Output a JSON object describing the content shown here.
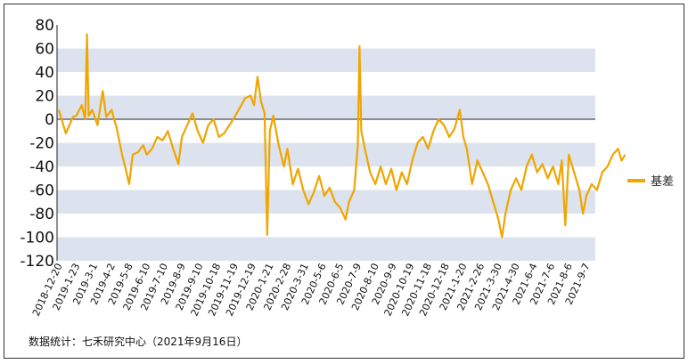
{
  "chart_data": {
    "type": "line",
    "title": "",
    "xlabel": "",
    "ylabel": "",
    "ylim": [
      -120,
      80
    ],
    "y_ticks": [
      80,
      60,
      40,
      20,
      0,
      -20,
      -40,
      -60,
      -80,
      -100,
      -120
    ],
    "grid": "alternating horizontal bands",
    "legend_position": "right",
    "categories": [
      "2018-12-20",
      "2019-1-23",
      "2019-3-1",
      "2019-4-2",
      "2019-5-8",
      "2019-6-10",
      "2019-7-10",
      "2019-8-9",
      "2019-9-10",
      "2019-10-18",
      "2019-11-19",
      "2019-12-19",
      "2020-1-21",
      "2020-2-28",
      "2020-3-31",
      "2020-5-6",
      "2020-6-5",
      "2020-7-9",
      "2020-8-10",
      "2020-9-9",
      "2020-10-19",
      "2020-11-18",
      "2020-12-18",
      "2021-1-20",
      "2021-2-26",
      "2021-3-30",
      "2021-4-30",
      "2021-6-4",
      "2021-7-6",
      "2021-8-6",
      "2021-9-7"
    ],
    "series": [
      {
        "name": "基差",
        "color": "#F0A500",
        "values": [
          [
            0,
            8
          ],
          [
            0.4,
            -12
          ],
          [
            0.8,
            2
          ],
          [
            1,
            3
          ],
          [
            1.3,
            12
          ],
          [
            1.5,
            0
          ],
          [
            1.6,
            72
          ],
          [
            1.7,
            3
          ],
          [
            1.9,
            8
          ],
          [
            2.2,
            -5
          ],
          [
            2.5,
            24
          ],
          [
            2.7,
            2
          ],
          [
            3,
            8
          ],
          [
            3.3,
            -8
          ],
          [
            3.6,
            -30
          ],
          [
            3.8,
            -42
          ],
          [
            4,
            -55
          ],
          [
            4.2,
            -30
          ],
          [
            4.5,
            -28
          ],
          [
            4.8,
            -22
          ],
          [
            5,
            -30
          ],
          [
            5.3,
            -25
          ],
          [
            5.6,
            -15
          ],
          [
            5.9,
            -18
          ],
          [
            6.2,
            -10
          ],
          [
            6.5,
            -25
          ],
          [
            6.8,
            -38
          ],
          [
            7,
            -15
          ],
          [
            7.3,
            -5
          ],
          [
            7.6,
            5
          ],
          [
            7.9,
            -10
          ],
          [
            8.2,
            -20
          ],
          [
            8.5,
            -5
          ],
          [
            8.8,
            0
          ],
          [
            9.1,
            -15
          ],
          [
            9.4,
            -12
          ],
          [
            9.7,
            -5
          ],
          [
            10,
            2
          ],
          [
            10.3,
            10
          ],
          [
            10.6,
            18
          ],
          [
            10.9,
            20
          ],
          [
            11.1,
            12
          ],
          [
            11.3,
            36
          ],
          [
            11.5,
            15
          ],
          [
            11.7,
            5
          ],
          [
            11.85,
            -98
          ],
          [
            12,
            -10
          ],
          [
            12.2,
            3
          ],
          [
            12.5,
            -22
          ],
          [
            12.8,
            -40
          ],
          [
            13,
            -25
          ],
          [
            13.3,
            -55
          ],
          [
            13.6,
            -42
          ],
          [
            13.9,
            -60
          ],
          [
            14.2,
            -72
          ],
          [
            14.5,
            -62
          ],
          [
            14.8,
            -48
          ],
          [
            15.1,
            -65
          ],
          [
            15.4,
            -58
          ],
          [
            15.7,
            -70
          ],
          [
            16,
            -75
          ],
          [
            16.3,
            -85
          ],
          [
            16.5,
            -70
          ],
          [
            16.8,
            -60
          ],
          [
            17,
            -22
          ],
          [
            17.1,
            62
          ],
          [
            17.2,
            -10
          ],
          [
            17.4,
            -25
          ],
          [
            17.7,
            -45
          ],
          [
            18,
            -55
          ],
          [
            18.3,
            -40
          ],
          [
            18.6,
            -55
          ],
          [
            18.9,
            -42
          ],
          [
            19.2,
            -60
          ],
          [
            19.5,
            -45
          ],
          [
            19.8,
            -55
          ],
          [
            20.1,
            -35
          ],
          [
            20.4,
            -20
          ],
          [
            20.7,
            -15
          ],
          [
            21,
            -25
          ],
          [
            21.3,
            -10
          ],
          [
            21.6,
            0
          ],
          [
            21.9,
            -5
          ],
          [
            22.2,
            -15
          ],
          [
            22.5,
            -8
          ],
          [
            22.8,
            8
          ],
          [
            23,
            -15
          ],
          [
            23.2,
            -25
          ],
          [
            23.5,
            -55
          ],
          [
            23.8,
            -35
          ],
          [
            24.1,
            -45
          ],
          [
            24.4,
            -55
          ],
          [
            24.7,
            -70
          ],
          [
            25,
            -85
          ],
          [
            25.2,
            -100
          ],
          [
            25.4,
            -80
          ],
          [
            25.7,
            -60
          ],
          [
            26,
            -50
          ],
          [
            26.3,
            -60
          ],
          [
            26.6,
            -40
          ],
          [
            26.9,
            -30
          ],
          [
            27.2,
            -45
          ],
          [
            27.5,
            -38
          ],
          [
            27.8,
            -50
          ],
          [
            28.1,
            -40
          ],
          [
            28.4,
            -55
          ],
          [
            28.6,
            -35
          ],
          [
            28.8,
            -90
          ],
          [
            29,
            -30
          ],
          [
            29.3,
            -45
          ],
          [
            29.6,
            -60
          ],
          [
            29.8,
            -80
          ],
          [
            30,
            -65
          ],
          [
            30.3,
            -55
          ],
          [
            30.6,
            -60
          ],
          [
            30.9,
            -45
          ],
          [
            31.2,
            -40
          ],
          [
            31.5,
            -30
          ],
          [
            31.8,
            -25
          ],
          [
            32,
            -35
          ],
          [
            32.2,
            -30
          ]
        ]
      }
    ],
    "source_note": "数据统计：七禾研究中心（2021年9月16日）"
  }
}
